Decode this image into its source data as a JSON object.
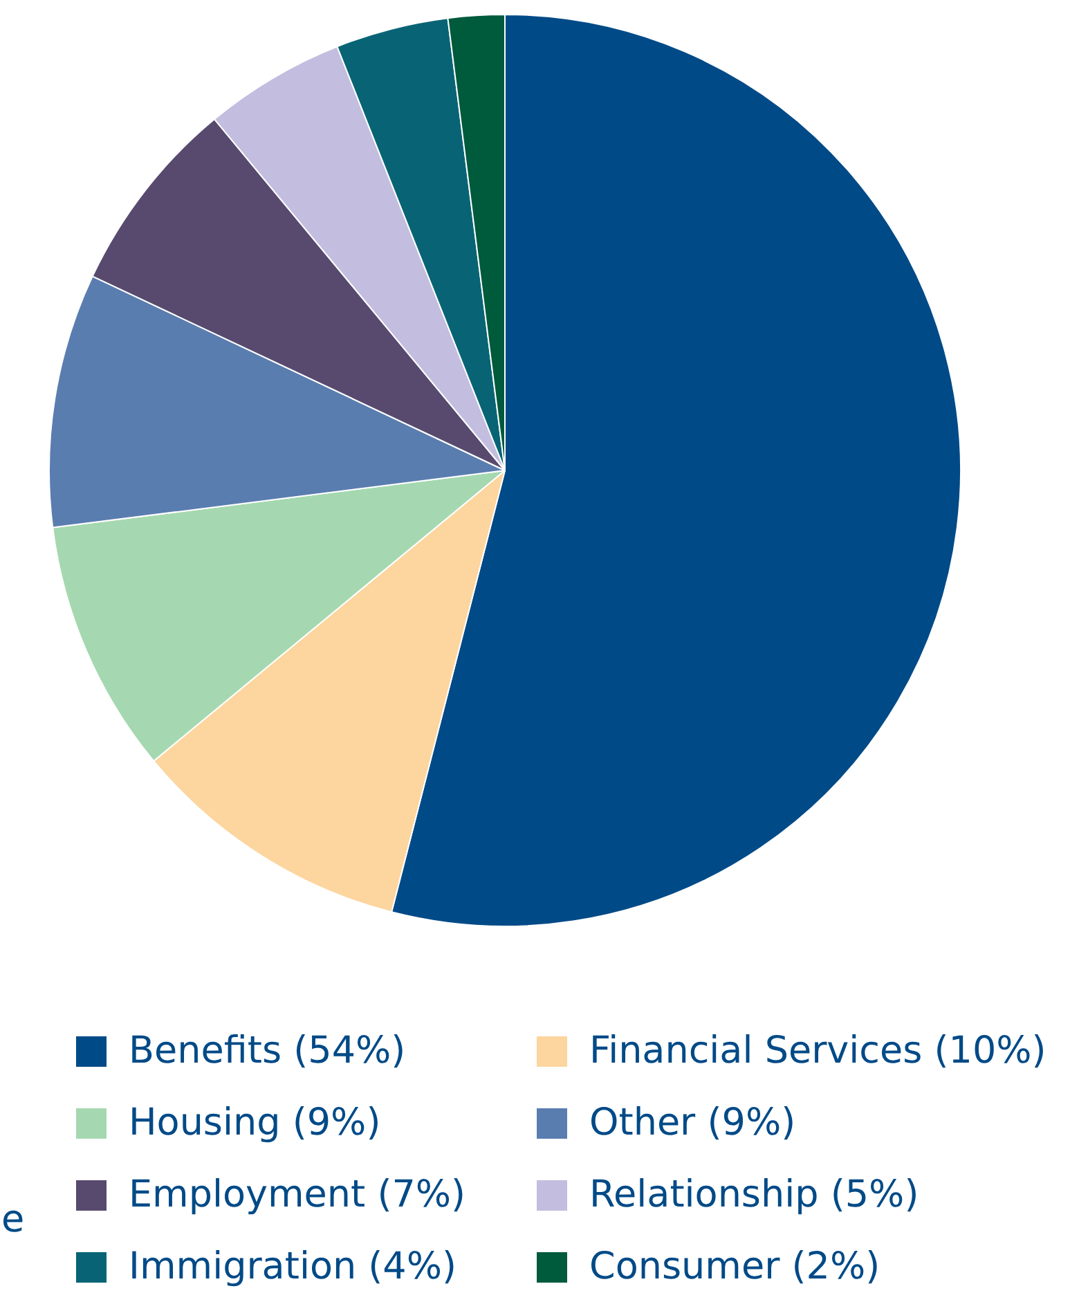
{
  "chart_data": {
    "type": "pie",
    "categories": [
      "Benefits (54%)",
      "Financial Services (10%)",
      "Housing (9%)",
      "Other (9%)",
      "Employment (7%)",
      "Relationship (5%)",
      "Immigration (4%)",
      "Consumer (2%)"
    ],
    "values": [
      54,
      10,
      9,
      9,
      7,
      5,
      4,
      2
    ],
    "colors": [
      "#004a87",
      "#fcd59f",
      "#a5d8b0",
      "#5a7db0",
      "#574a6e",
      "#c3bddf",
      "#086475",
      "#005a3c"
    ],
    "legend": "bottom",
    "annotations": [
      "e"
    ]
  }
}
